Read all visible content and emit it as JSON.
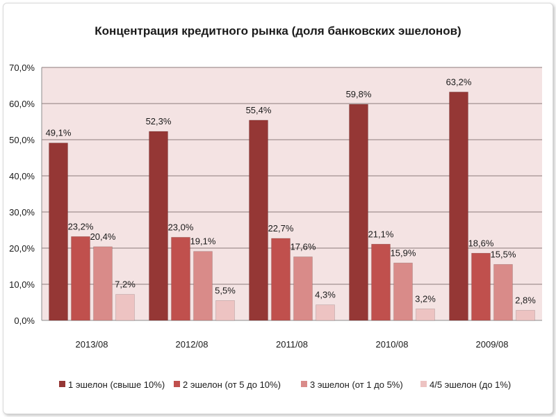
{
  "chart_data": {
    "type": "bar",
    "title": "Концентрация кредитного рынка (доля банковских эшелонов)",
    "xlabel": "",
    "ylabel": "",
    "ylim": [
      0,
      70
    ],
    "yticks": [
      "0,0%",
      "10,0%",
      "20,0%",
      "30,0%",
      "40,0%",
      "50,0%",
      "60,0%",
      "70,0%"
    ],
    "grid": true,
    "legend_position": "bottom",
    "categories": [
      "2013/08",
      "2012/08",
      "2011/08",
      "2010/08",
      "2009/08"
    ],
    "series": [
      {
        "name": "1 эшелон (свыше 10%)",
        "color": "#953735",
        "values": [
          49.1,
          52.3,
          55.4,
          59.8,
          63.2
        ],
        "labels": [
          "49,1%",
          "52,3%",
          "55,4%",
          "59,8%",
          "63,2%"
        ]
      },
      {
        "name": "2 эшелон (от 5 до 10%)",
        "color": "#c0504d",
        "values": [
          23.2,
          23.0,
          22.7,
          21.1,
          18.6
        ],
        "labels": [
          "23,2%",
          "23,0%",
          "22,7%",
          "21,1%",
          "18,6%"
        ]
      },
      {
        "name": "3 эшелон (от 1 до 5%)",
        "color": "#d98b89",
        "values": [
          20.4,
          19.1,
          17.6,
          15.9,
          15.5
        ],
        "labels": [
          "20,4%",
          "19,1%",
          "17,6%",
          "15,9%",
          "15,5%"
        ]
      },
      {
        "name": "4/5 эшелон (до 1%)",
        "color": "#edc3c2",
        "values": [
          7.2,
          5.5,
          4.3,
          3.2,
          2.8
        ],
        "labels": [
          "7,2%",
          "5,5%",
          "4,3%",
          "3,2%",
          "2,8%"
        ]
      }
    ],
    "plot_background": "#f4e3e3",
    "gridline_color": "#8c7b7b"
  }
}
